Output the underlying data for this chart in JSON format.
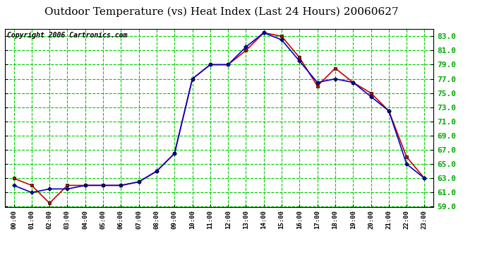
{
  "title": "Outdoor Temperature (vs) Heat Index (Last 24 Hours) 20060627",
  "copyright": "Copyright 2006 Cartronics.com",
  "hours": [
    "00:00",
    "01:00",
    "02:00",
    "03:00",
    "04:00",
    "05:00",
    "06:00",
    "07:00",
    "08:00",
    "09:00",
    "10:00",
    "11:00",
    "12:00",
    "13:00",
    "14:00",
    "15:00",
    "16:00",
    "17:00",
    "18:00",
    "19:00",
    "20:00",
    "21:00",
    "22:00",
    "23:00"
  ],
  "temp": [
    62.0,
    61.0,
    61.5,
    61.5,
    62.0,
    62.0,
    62.0,
    62.5,
    64.0,
    66.5,
    77.0,
    79.0,
    79.0,
    81.5,
    83.5,
    82.5,
    79.5,
    76.5,
    77.0,
    76.5,
    74.5,
    72.5,
    65.0,
    63.0
  ],
  "heat_index": [
    63.0,
    62.0,
    59.5,
    62.0,
    62.0,
    62.0,
    62.0,
    62.5,
    64.0,
    66.5,
    77.0,
    79.0,
    79.0,
    81.0,
    83.5,
    83.0,
    80.0,
    76.0,
    78.5,
    76.5,
    75.0,
    72.5,
    66.0,
    63.0
  ],
  "temp_color": "#0000cc",
  "heat_index_color": "#cc0000",
  "bg_color": "#ffffff",
  "plot_bg_color": "#ffffff",
  "grid_color": "#00cc00",
  "ylim": [
    59.0,
    84.0
  ],
  "yticks": [
    59.0,
    61.0,
    63.0,
    65.0,
    67.0,
    69.0,
    71.0,
    73.0,
    75.0,
    77.0,
    79.0,
    81.0,
    83.0
  ],
  "ytick_labels": [
    "59.0",
    "61.0",
    "63.0",
    "65.0",
    "67.0",
    "69.0",
    "71.0",
    "73.0",
    "75.0",
    "77.0",
    "79.0",
    "81.0",
    "83.0"
  ],
  "title_fontsize": 11,
  "copyright_fontsize": 7,
  "marker_size": 3,
  "line_width": 1.2
}
